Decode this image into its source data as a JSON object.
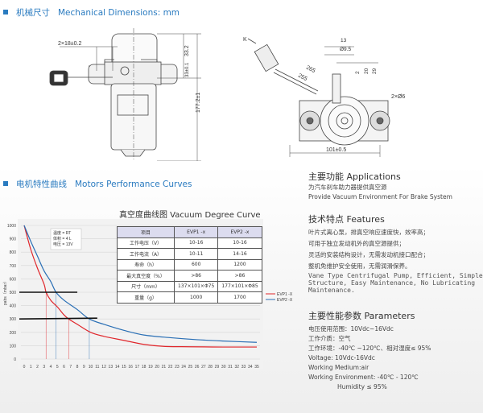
{
  "sections": {
    "mechanical": {
      "cn": "机械尺寸",
      "en": "Mechanical Dimensions: mm"
    },
    "curves": {
      "cn": "电机特性曲线",
      "en": "Motors Performance Curves"
    }
  },
  "drawing": {
    "front": {
      "dim_mount": "2×18±0.2",
      "dim_top": "33.2",
      "dim_flange": "33±0.1",
      "dim_height": "177.2±1"
    },
    "top": {
      "label_k": "K",
      "dim_cable1": "265",
      "dim_cable2": "255",
      "dim_13": "13",
      "dim_dia95": "Ø9.5",
      "dim_20": "20",
      "dim_29": "29",
      "dim_2": "2",
      "dim_holes": "2×Ø6",
      "dim_width": "101±0.5"
    }
  },
  "chart_title": "真空度曲线图  Vacuum Degree Curve",
  "spec_table": {
    "headers": [
      "项目",
      "EVP1 -x",
      "EVP2 -x"
    ],
    "rows": [
      [
        "工作电压（V）",
        "10-16",
        "10-16"
      ],
      [
        "工作电流（A）",
        "10-11",
        "14-16"
      ],
      [
        "寿命（h）",
        "600",
        "1200"
      ],
      [
        "最大真空度（%）",
        ">86",
        ">86"
      ],
      [
        "尺寸（mm）",
        "137×101×Φ75",
        "177×101×Φ85"
      ],
      [
        "重量（g）",
        "1000",
        "1700"
      ]
    ]
  },
  "chart_data": {
    "type": "line",
    "title": "",
    "xlabel": "",
    "ylabel": "pabs（mbar）",
    "xlim": [
      0,
      35
    ],
    "ylim": [
      0,
      1000
    ],
    "xticks": [
      0,
      1,
      2,
      3,
      4,
      5,
      6,
      7,
      8,
      9,
      10,
      11,
      12,
      13,
      14,
      15,
      16,
      17,
      18,
      19,
      20,
      21,
      22,
      23,
      24,
      25,
      26,
      27,
      28,
      29,
      30,
      31,
      32,
      33,
      34,
      35
    ],
    "yticks": [
      0,
      100,
      200,
      300,
      400,
      500,
      600,
      700,
      800,
      900,
      1000
    ],
    "grid": true,
    "legend": "right",
    "conditions": [
      "温度 = RT",
      "体积 = 4 L",
      "电压 = 13V"
    ],
    "series": [
      {
        "name": "EVP1 -X",
        "color": "#e0262b",
        "x": [
          0,
          1,
          2,
          3,
          3.3,
          4,
          5,
          6,
          6.7,
          8,
          10,
          12,
          15,
          18,
          21,
          25,
          30,
          35
        ],
        "y": [
          1000,
          820,
          680,
          560,
          500,
          440,
          390,
          330,
          300,
          260,
          200,
          170,
          140,
          110,
          95,
          92,
          90,
          90
        ]
      },
      {
        "name": "EVP2 -X",
        "color": "#2a6fb5",
        "x": [
          0,
          1,
          2,
          3,
          4,
          4.8,
          6,
          8,
          9.8,
          12,
          15,
          18,
          22,
          26,
          30,
          35
        ],
        "y": [
          1000,
          880,
          770,
          660,
          580,
          500,
          440,
          370,
          300,
          260,
          215,
          180,
          160,
          145,
          135,
          125
        ]
      }
    ],
    "reference_lines": {
      "horizontal": [
        500,
        300
      ],
      "vertical": [
        {
          "x": 3.3,
          "series": "EVP1 -X"
        },
        {
          "x": 6.7,
          "series": "EVP1 -X"
        },
        {
          "x": 4.8,
          "series": "EVP2 -X"
        },
        {
          "x": 9.8,
          "series": "EVP2 -X"
        }
      ]
    }
  },
  "applications": {
    "title": "主要功能  Applications",
    "cn": "为汽车刹车助力器提供真空源",
    "en": "Provide Vacuum Environment For Brake System"
  },
  "features": {
    "title": "技术特点 Features",
    "cn": [
      "叶片式离心泵，排真空响应速度快，效率高；",
      "可用于独立发动机外的真空源提供；",
      "灵活的安装结构设计，无需发动机接口配合；",
      "整机免维护安全使用，无需润滑保养。"
    ],
    "en": [
      "Vane Type Centrifugal Pump, Efficient, Simple",
      "Structure, Easy Maintenance, No Lubricating",
      "Maintenance."
    ]
  },
  "parameters": {
    "title": "主要性能参数 Parameters",
    "lines": [
      "电压使用范围：10Vdc~16Vdc",
      "工作介质：空气",
      "工作环境：-40℃ ~120℃、相对湿度≤ 95%",
      "Voltage: 10Vdc-16Vdc",
      "Working Medium:air",
      "Working Environment: -40℃ - 120℃",
      "Humidity ≤ 95%"
    ]
  }
}
